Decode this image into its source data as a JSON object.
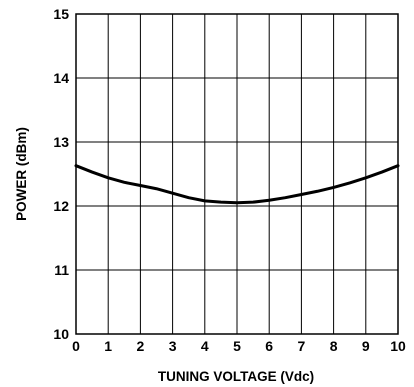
{
  "chart_data": {
    "type": "line",
    "title": "",
    "xlabel": "TUNING VOLTAGE (Vdc)",
    "ylabel": "POWER (dBm)",
    "xlim": [
      0,
      10
    ],
    "ylim": [
      10,
      15
    ],
    "x_ticks": [
      "0",
      "1",
      "2",
      "3",
      "4",
      "5",
      "6",
      "7",
      "8",
      "9",
      "10"
    ],
    "y_ticks": [
      "10",
      "11",
      "12",
      "13",
      "14",
      "15"
    ],
    "grid": true,
    "series": [
      {
        "x": [
          0,
          0.5,
          1,
          1.5,
          2,
          2.5,
          3,
          3.5,
          4,
          4.5,
          5,
          5.5,
          6,
          6.5,
          7,
          7.5,
          8,
          8.5,
          9,
          9.5,
          10
        ],
        "values": [
          12.63,
          12.53,
          12.44,
          12.37,
          12.32,
          12.27,
          12.2,
          12.13,
          12.08,
          12.06,
          12.05,
          12.06,
          12.09,
          12.13,
          12.18,
          12.23,
          12.29,
          12.36,
          12.44,
          12.53,
          12.63
        ]
      }
    ],
    "colors": {
      "line": "#000000",
      "grid": "#000000",
      "frame": "#000000"
    }
  }
}
